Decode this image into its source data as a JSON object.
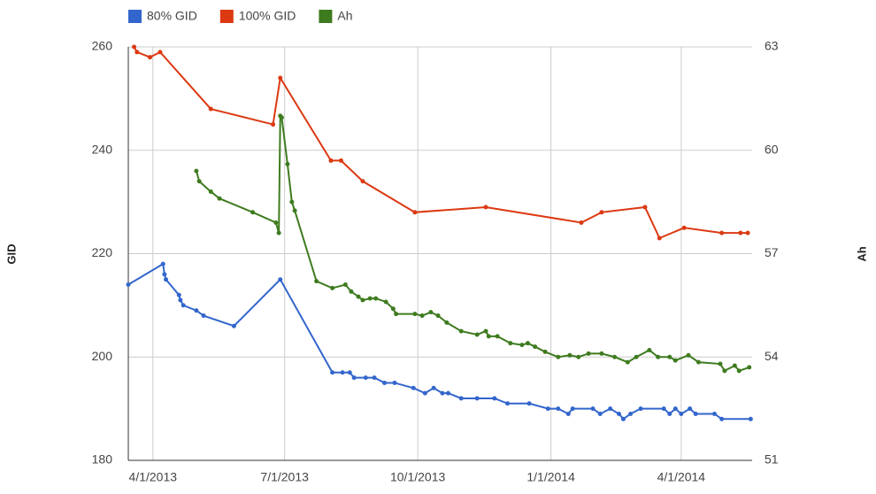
{
  "chart_data": {
    "type": "line",
    "y_label": "GID",
    "y2_label": "Ah",
    "xlim": [
      "3/15/2013",
      "5/20/2014"
    ],
    "xticks": [
      "4/1/2013",
      "7/1/2013",
      "10/1/2013",
      "1/1/2014",
      "4/1/2014"
    ],
    "ylim": [
      180,
      260
    ],
    "yticks": [
      180,
      200,
      220,
      240,
      260
    ],
    "y2lim": [
      51,
      63
    ],
    "y2ticks": [
      51,
      54,
      57,
      60,
      63
    ],
    "grid": true,
    "legend": "top",
    "series": [
      {
        "name": "80% GID",
        "color": "#3366cc",
        "x": [
          "3/15/2013",
          "4/8/2013",
          "4/9/2013",
          "4/10/2013",
          "4/19/2013",
          "4/20/2013",
          "4/22/2013",
          "5/1/2013",
          "5/6/2013",
          "5/27/2013",
          "6/28/2013",
          "8/3/2013",
          "8/10/2013",
          "8/15/2013",
          "8/18/2013",
          "8/26/2013",
          "9/1/2013",
          "9/8/2013",
          "9/15/2013",
          "9/28/2013",
          "10/6/2013",
          "10/12/2013",
          "10/18/2013",
          "10/22/2013",
          "10/31/2013",
          "11/11/2013",
          "11/23/2013",
          "12/2/2013",
          "12/17/2013",
          "12/30/2013",
          "1/6/2014",
          "1/13/2014",
          "1/16/2014",
          "1/30/2014",
          "2/4/2014",
          "2/11/2014",
          "2/17/2014",
          "2/20/2014",
          "2/25/2014",
          "3/4/2014",
          "3/20/2014",
          "3/24/2014",
          "3/28/2014",
          "4/1/2014",
          "4/7/2014",
          "4/11/2014",
          "4/24/2014",
          "4/29/2014",
          "5/19/2014"
        ],
        "values": [
          214,
          218,
          216,
          215,
          212,
          211,
          210,
          209,
          208,
          206,
          215,
          197,
          197,
          197,
          196,
          196,
          196,
          195,
          195,
          194,
          193,
          194,
          193,
          193,
          192,
          192,
          192,
          191,
          191,
          190,
          190,
          189,
          190,
          190,
          189,
          190,
          189,
          188,
          189,
          190,
          190,
          189,
          190,
          189,
          190,
          189,
          189,
          188,
          188
        ]
      },
      {
        "name": "100% GID",
        "color": "#dc3912",
        "x": [
          "3/19/2013",
          "3/21/2013",
          "3/30/2013",
          "4/6/2013",
          "5/11/2013",
          "6/23/2013",
          "6/28/2013",
          "8/2/2013",
          "8/9/2013",
          "8/24/2013",
          "9/29/2013",
          "11/17/2013",
          "1/22/2014",
          "2/5/2014",
          "3/7/2014",
          "3/17/2014",
          "4/3/2014",
          "4/29/2014",
          "5/12/2014",
          "5/17/2014"
        ],
        "values": [
          260,
          259,
          258,
          259,
          248,
          245,
          254,
          238,
          238,
          234,
          228,
          229,
          226,
          228,
          229,
          223,
          225,
          224,
          224,
          224
        ]
      },
      {
        "name": "Ah",
        "color": "#3e7b1f",
        "axis": "y2",
        "x": [
          "5/1/2013",
          "5/3/2013",
          "5/11/2013",
          "5/17/2013",
          "6/9/2013",
          "6/25/2013",
          "6/27/2013",
          "6/28/2013",
          "6/29/2013",
          "7/3/2013",
          "7/6/2013",
          "7/8/2013",
          "7/23/2013",
          "8/3/2013",
          "8/12/2013",
          "8/16/2013",
          "8/21/2013",
          "8/24/2013",
          "8/29/2013",
          "9/2/2013",
          "9/9/2013",
          "9/14/2013",
          "9/16/2013",
          "9/29/2013",
          "10/4/2013",
          "10/10/2013",
          "10/15/2013",
          "10/21/2013",
          "10/31/2013",
          "11/11/2013",
          "11/17/2013",
          "11/19/2013",
          "11/25/2013",
          "12/4/2013",
          "12/12/2013",
          "12/16/2013",
          "12/21/2013",
          "12/28/2013",
          "1/6/2014",
          "1/14/2014",
          "1/20/2014",
          "1/27/2014",
          "2/5/2014",
          "2/14/2014",
          "2/23/2014",
          "3/1/2014",
          "3/10/2014",
          "3/16/2014",
          "3/24/2014",
          "3/28/2014",
          "4/6/2014",
          "4/13/2014",
          "4/28/2014",
          "5/1/2014",
          "5/8/2014",
          "5/11/2014",
          "5/18/2014"
        ],
        "values": [
          59.4,
          59.1,
          58.8,
          58.6,
          58.2,
          57.9,
          57.6,
          61.0,
          60.95,
          59.6,
          58.5,
          58.25,
          56.2,
          56.0,
          56.1,
          55.9,
          55.75,
          55.65,
          55.7,
          55.7,
          55.6,
          55.4,
          55.25,
          55.25,
          55.2,
          55.3,
          55.2,
          55.0,
          54.75,
          54.65,
          54.75,
          54.6,
          54.6,
          54.4,
          54.35,
          54.4,
          54.3,
          54.15,
          54.0,
          54.05,
          54.0,
          54.1,
          54.1,
          54.0,
          53.85,
          54.0,
          54.2,
          54.0,
          54.0,
          53.9,
          54.05,
          53.85,
          53.8,
          53.6,
          53.75,
          53.6,
          53.7
        ]
      }
    ]
  }
}
